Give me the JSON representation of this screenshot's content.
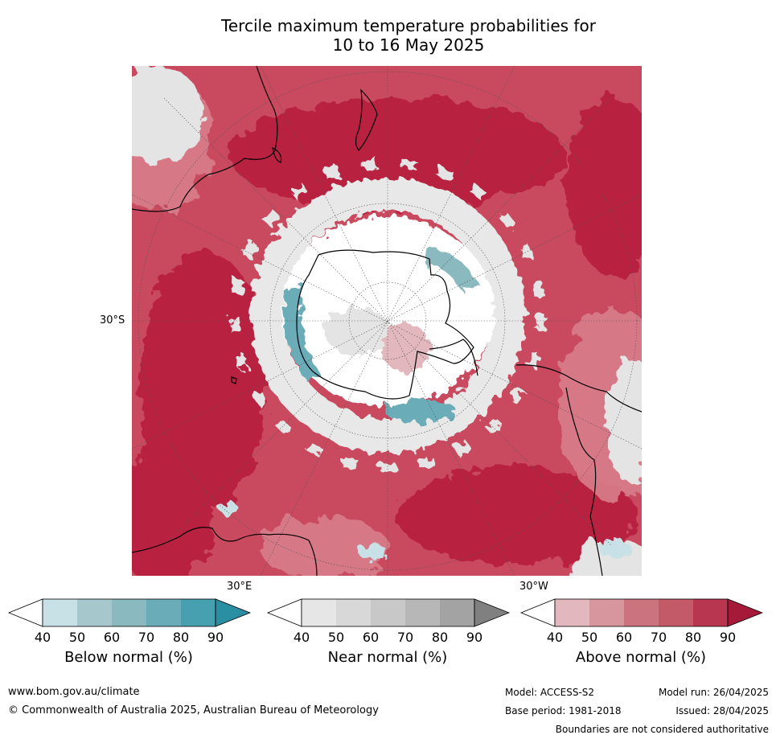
{
  "title_line1": "Tercile maximum temperature probabilities for",
  "title_line2": "10 to 16 May 2025",
  "map": {
    "lat_label": "30°S",
    "lon_label_east": "30°E",
    "lon_label_west": "30°W",
    "colors": {
      "ocean_above_dark": "#b82040",
      "ocean_above": "#c94a5e",
      "ocean_above_light": "#d97e8c",
      "near_normal": "#e4e4e4",
      "below_normal": "#6aacb8",
      "below_light": "#c8e1e6",
      "antarctica_white": "#ffffff",
      "coast": "#000000"
    }
  },
  "legends": [
    {
      "caption": "Below normal (%)",
      "ticks": [
        "40",
        "50",
        "60",
        "70",
        "80",
        "90"
      ],
      "colors": [
        "#ffffff",
        "#c8e1e6",
        "#a6c8cd",
        "#8ab9bf",
        "#6aacb8",
        "#46a0b0",
        "#2a8fa3"
      ]
    },
    {
      "caption": "Near normal (%)",
      "ticks": [
        "40",
        "50",
        "60",
        "70",
        "80",
        "90"
      ],
      "colors": [
        "#ffffff",
        "#e6e6e6",
        "#d8d8d8",
        "#c8c8c8",
        "#b7b7b7",
        "#a3a3a3",
        "#808080"
      ]
    },
    {
      "caption": "Above normal (%)",
      "ticks": [
        "40",
        "50",
        "60",
        "70",
        "80",
        "90"
      ],
      "colors": [
        "#ffffff",
        "#e2b8be",
        "#d7959e",
        "#cc7380",
        "#c35a68",
        "#b83650",
        "#a51a38"
      ]
    }
  ],
  "footer": {
    "website": "www.bom.gov.au/climate",
    "copyright": "© Commonwealth of Australia 2025, Australian Bureau of Meteorology",
    "model": "Model: ACCESS-S2",
    "model_run": "Model run: 26/04/2025",
    "base_period": "Base period: 1981-2018",
    "issued": "Issued: 28/04/2025",
    "disclaimer": "Boundaries are not considered authoritative"
  }
}
